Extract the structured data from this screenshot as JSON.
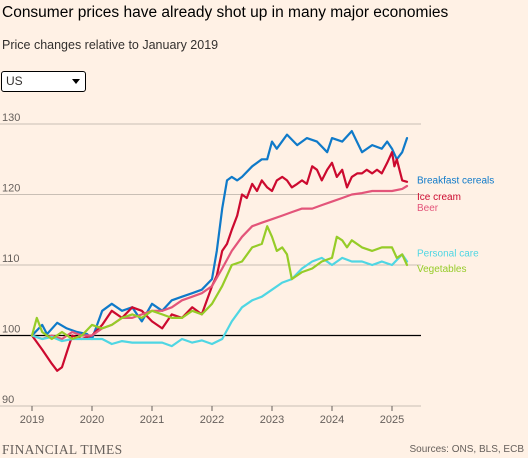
{
  "header": {
    "title": "Consumer prices have already shot up in many major economies",
    "subtitle": "Price changes relative to January 2019"
  },
  "dropdown": {
    "selected": "US"
  },
  "footer": {
    "logo": "FINANCIAL TIMES",
    "source": "Sources: ONS, BLS, ECB"
  },
  "chart_data": {
    "type": "line",
    "xlabel": "",
    "ylabel": "",
    "xlim": [
      2019,
      2025.35
    ],
    "ylim": [
      90,
      130
    ],
    "xticks": [
      "2019",
      "2020",
      "2021",
      "2022",
      "2023",
      "2024",
      "2025"
    ],
    "yticks": [
      "90",
      "100",
      "110",
      "120",
      "130"
    ],
    "baseline": 100,
    "grid": true,
    "series": [
      {
        "name": "Breakfast cereals",
        "color": "#0f7ac9",
        "label_y": 122.1,
        "x": [
          2019.0,
          2019.17,
          2019.25,
          2019.42,
          2019.58,
          2019.75,
          2019.92,
          2020.0,
          2020.17,
          2020.33,
          2020.5,
          2020.67,
          2020.83,
          2021.0,
          2021.17,
          2021.33,
          2021.5,
          2021.67,
          2021.83,
          2022.0,
          2022.08,
          2022.17,
          2022.25,
          2022.33,
          2022.42,
          2022.5,
          2022.67,
          2022.83,
          2022.92,
          2023.0,
          2023.08,
          2023.25,
          2023.42,
          2023.58,
          2023.75,
          2023.92,
          2024.0,
          2024.17,
          2024.33,
          2024.5,
          2024.67,
          2024.83,
          2024.92,
          2025.0,
          2025.08,
          2025.17,
          2025.25
        ],
        "y": [
          100,
          101.5,
          100.2,
          101.8,
          101.0,
          100.5,
          100.2,
          99.5,
          103.5,
          104.5,
          103.5,
          104.0,
          102.0,
          104.5,
          103.5,
          105.0,
          105.5,
          106.0,
          106.5,
          108.0,
          112.0,
          118.0,
          122.0,
          122.5,
          122.0,
          122.5,
          124.0,
          125.0,
          125.0,
          127.5,
          126.5,
          128.5,
          127.0,
          128.0,
          127.5,
          126.0,
          128.0,
          127.5,
          129.0,
          126.0,
          127.0,
          126.5,
          127.5,
          126.5,
          125.0,
          126.0,
          128.0
        ]
      },
      {
        "name": "Ice cream",
        "color": "#cc0a2f",
        "label_y": 119.8,
        "x": [
          2019.0,
          2019.17,
          2019.33,
          2019.42,
          2019.5,
          2019.67,
          2019.83,
          2020.0,
          2020.17,
          2020.33,
          2020.5,
          2020.67,
          2020.83,
          2021.0,
          2021.17,
          2021.33,
          2021.5,
          2021.67,
          2021.83,
          2022.0,
          2022.08,
          2022.17,
          2022.25,
          2022.33,
          2022.42,
          2022.5,
          2022.58,
          2022.67,
          2022.75,
          2022.83,
          2022.92,
          2023.0,
          2023.08,
          2023.17,
          2023.25,
          2023.33,
          2023.42,
          2023.5,
          2023.58,
          2023.67,
          2023.75,
          2023.83,
          2023.92,
          2024.0,
          2024.08,
          2024.17,
          2024.25,
          2024.33,
          2024.42,
          2024.5,
          2024.58,
          2024.67,
          2024.75,
          2024.83,
          2024.92,
          2025.0,
          2025.04,
          2025.08,
          2025.17,
          2025.25
        ],
        "y": [
          100,
          98.0,
          96.0,
          95.0,
          95.5,
          100.0,
          99.5,
          100.0,
          101.5,
          103.5,
          102.5,
          104.0,
          103.5,
          102.0,
          101.0,
          103.0,
          102.5,
          104.0,
          103.0,
          107.0,
          108.5,
          112.0,
          113.0,
          115.0,
          117.0,
          120.0,
          119.5,
          121.5,
          120.5,
          122.0,
          121.0,
          120.5,
          122.0,
          122.5,
          122.0,
          121.0,
          121.5,
          122.0,
          121.5,
          124.0,
          123.5,
          122.0,
          123.5,
          124.5,
          122.5,
          123.5,
          121.0,
          122.5,
          123.0,
          123.0,
          123.5,
          123.0,
          123.5,
          123.0,
          124.5,
          126.0,
          124.0,
          125.0,
          122.0,
          121.8
        ]
      },
      {
        "name": "Beer",
        "color": "#e3557a",
        "label_y": 118.2,
        "x": [
          2019.0,
          2019.17,
          2019.33,
          2019.5,
          2019.67,
          2019.83,
          2020.0,
          2020.17,
          2020.33,
          2020.5,
          2020.67,
          2020.83,
          2021.0,
          2021.17,
          2021.33,
          2021.5,
          2021.67,
          2021.83,
          2022.0,
          2022.17,
          2022.33,
          2022.5,
          2022.67,
          2022.83,
          2023.0,
          2023.17,
          2023.33,
          2023.5,
          2023.67,
          2023.83,
          2024.0,
          2024.17,
          2024.33,
          2024.5,
          2024.67,
          2024.83,
          2025.0,
          2025.17,
          2025.25
        ],
        "y": [
          100,
          99.5,
          100.0,
          99.5,
          100.5,
          100.0,
          100.0,
          101.0,
          101.5,
          102.5,
          102.5,
          103.0,
          103.5,
          103.5,
          104.0,
          105.0,
          105.5,
          106.0,
          107.0,
          109.5,
          112.0,
          114.0,
          115.5,
          116.0,
          116.5,
          117.0,
          117.5,
          118.0,
          118.0,
          118.5,
          119.0,
          119.5,
          120.0,
          120.2,
          120.5,
          120.5,
          120.5,
          120.8,
          121.2
        ]
      },
      {
        "name": "Personal care",
        "color": "#4fd6e3",
        "label_y": 111.8,
        "x": [
          2019.0,
          2019.17,
          2019.33,
          2019.5,
          2019.67,
          2019.83,
          2020.0,
          2020.17,
          2020.33,
          2020.5,
          2020.67,
          2020.83,
          2021.0,
          2021.17,
          2021.33,
          2021.5,
          2021.67,
          2021.83,
          2022.0,
          2022.17,
          2022.33,
          2022.5,
          2022.67,
          2022.83,
          2023.0,
          2023.17,
          2023.33,
          2023.5,
          2023.67,
          2023.83,
          2024.0,
          2024.17,
          2024.33,
          2024.5,
          2024.67,
          2024.83,
          2025.0,
          2025.17,
          2025.25
        ],
        "y": [
          100,
          99.5,
          99.8,
          99.2,
          99.5,
          99.5,
          99.5,
          99.5,
          98.8,
          99.2,
          99.0,
          99.0,
          99.0,
          99.0,
          98.5,
          99.5,
          99.0,
          99.3,
          98.8,
          99.5,
          102.0,
          104.0,
          105.0,
          105.5,
          106.5,
          107.5,
          108.0,
          109.5,
          110.5,
          111.0,
          110.0,
          111.0,
          110.5,
          110.5,
          110.0,
          110.5,
          110.0,
          111.5,
          110.5
        ]
      },
      {
        "name": "Vegetables",
        "color": "#96cc28",
        "label_y": 109.6,
        "x": [
          2019.0,
          2019.08,
          2019.17,
          2019.33,
          2019.5,
          2019.67,
          2019.83,
          2020.0,
          2020.17,
          2020.33,
          2020.5,
          2020.67,
          2020.83,
          2021.0,
          2021.17,
          2021.33,
          2021.5,
          2021.67,
          2021.83,
          2022.0,
          2022.17,
          2022.33,
          2022.5,
          2022.67,
          2022.83,
          2022.92,
          2023.0,
          2023.08,
          2023.17,
          2023.25,
          2023.33,
          2023.5,
          2023.67,
          2023.83,
          2024.0,
          2024.08,
          2024.17,
          2024.25,
          2024.33,
          2024.5,
          2024.67,
          2024.83,
          2025.0,
          2025.08,
          2025.17,
          2025.25
        ],
        "y": [
          100,
          102.5,
          100.5,
          99.5,
          100.5,
          99.5,
          100.0,
          101.5,
          101.0,
          101.5,
          102.5,
          103.0,
          102.5,
          103.5,
          103.0,
          102.5,
          102.5,
          103.5,
          103.0,
          104.5,
          107.0,
          110.0,
          110.5,
          112.5,
          113.0,
          115.5,
          114.0,
          112.0,
          112.5,
          111.5,
          108.0,
          109.0,
          109.5,
          110.5,
          111.0,
          114.0,
          113.5,
          112.5,
          113.5,
          112.5,
          112.0,
          112.5,
          112.5,
          111.0,
          111.5,
          110.0
        ]
      }
    ]
  }
}
